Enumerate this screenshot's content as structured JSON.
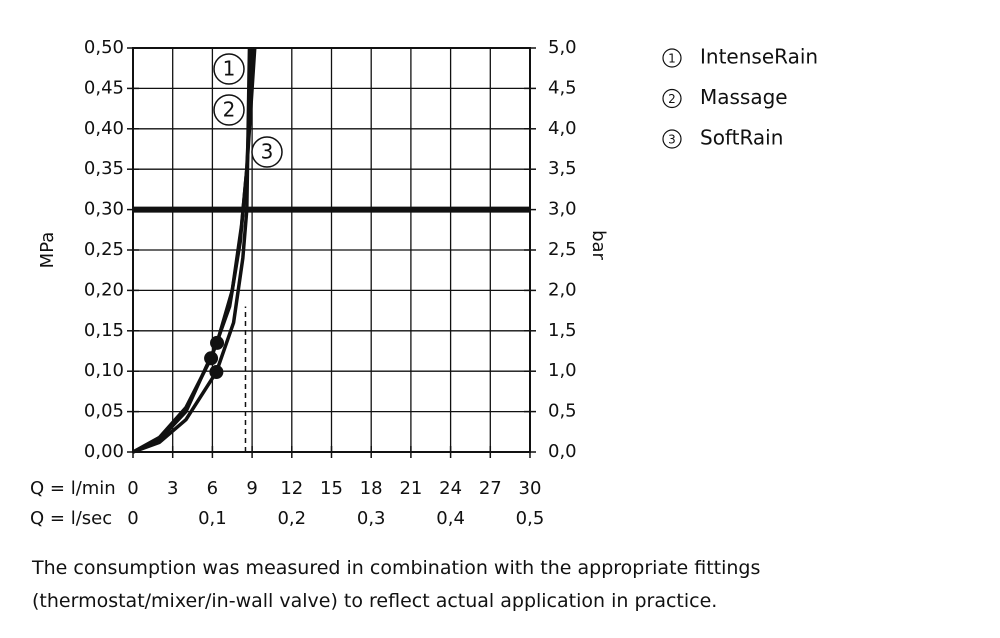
{
  "chart_data": {
    "type": "line",
    "y_axis_label": "MPa",
    "y2_axis_label": "bar",
    "x_axis_label": "Q = l/min",
    "x2_axis_label": "Q = l/sec",
    "xlim": [
      0,
      30
    ],
    "xticks": [
      0,
      3,
      6,
      9,
      12,
      15,
      18,
      21,
      24,
      27,
      30
    ],
    "x2lim": [
      0,
      0.5
    ],
    "x2ticks": [
      0,
      {
        "value": 0.1,
        "label": "0,1"
      },
      {
        "value": 0.2,
        "label": "0,2"
      },
      {
        "value": 0.3,
        "label": "0,3"
      },
      {
        "value": 0.4,
        "label": "0,4"
      },
      {
        "value": 0.5,
        "label": "0,5"
      }
    ],
    "ylim": [
      0,
      0.5
    ],
    "yticks": [
      {
        "value": 0,
        "label": "0,00"
      },
      {
        "value": 0.05,
        "label": "0,05"
      },
      {
        "value": 0.1,
        "label": "0,10"
      },
      {
        "value": 0.15,
        "label": "0,15"
      },
      {
        "value": 0.2,
        "label": "0,20"
      },
      {
        "value": 0.25,
        "label": "0,25"
      },
      {
        "value": 0.3,
        "label": "0,30"
      },
      {
        "value": 0.35,
        "label": "0,35"
      },
      {
        "value": 0.4,
        "label": "0,40"
      },
      {
        "value": 0.45,
        "label": "0,45"
      },
      {
        "value": 0.5,
        "label": "0,50"
      }
    ],
    "y2lim": [
      0,
      5
    ],
    "y2ticks": [
      {
        "value": 0,
        "label": "0,0"
      },
      {
        "value": 0.5,
        "label": "0,5"
      },
      {
        "value": 1,
        "label": "1,0"
      },
      {
        "value": 1.5,
        "label": "1,5"
      },
      {
        "value": 2,
        "label": "2,0"
      },
      {
        "value": 2.5,
        "label": "2,5"
      },
      {
        "value": 3,
        "label": "3,0"
      },
      {
        "value": 3.5,
        "label": "3,5"
      },
      {
        "value": 4,
        "label": "4,0"
      },
      {
        "value": 4.5,
        "label": "4,5"
      },
      {
        "value": 5,
        "label": "5,0"
      }
    ],
    "grid": true,
    "reference_line_y": 0.3,
    "reference_line_x": {
      "x": 8.5,
      "y_to": 0.18
    },
    "series": [
      {
        "name": "IntenseRain",
        "number": "1",
        "color": "#111111",
        "x": [
          0,
          2,
          4,
          6.35,
          7.5,
          8.2,
          8.6,
          9.0,
          9.2
        ],
        "values": [
          0,
          0.015,
          0.05,
          0.135,
          0.2,
          0.28,
          0.35,
          0.45,
          0.5
        ],
        "point": {
          "x": 6.35,
          "y": 0.135
        }
      },
      {
        "name": "Massage",
        "number": "2",
        "color": "#111111",
        "x": [
          0,
          2,
          4,
          5.9,
          7.3,
          8.1,
          8.6,
          9.0
        ],
        "values": [
          0,
          0.018,
          0.055,
          0.116,
          0.18,
          0.26,
          0.35,
          0.5
        ],
        "point": {
          "x": 5.9,
          "y": 0.116
        }
      },
      {
        "name": "SoftRain",
        "number": "3",
        "color": "#111111",
        "x": [
          0,
          2,
          4,
          6.3,
          7.6,
          8.3,
          8.6,
          8.8
        ],
        "values": [
          0,
          0.012,
          0.04,
          0.099,
          0.16,
          0.24,
          0.3,
          0.5
        ],
        "point": {
          "x": 6.3,
          "y": 0.099
        }
      }
    ],
    "footnote": "The consumption was measured in combination with the appropriate fittings (thermostat/mixer/in-wall valve) to reflect actual application in practice."
  }
}
